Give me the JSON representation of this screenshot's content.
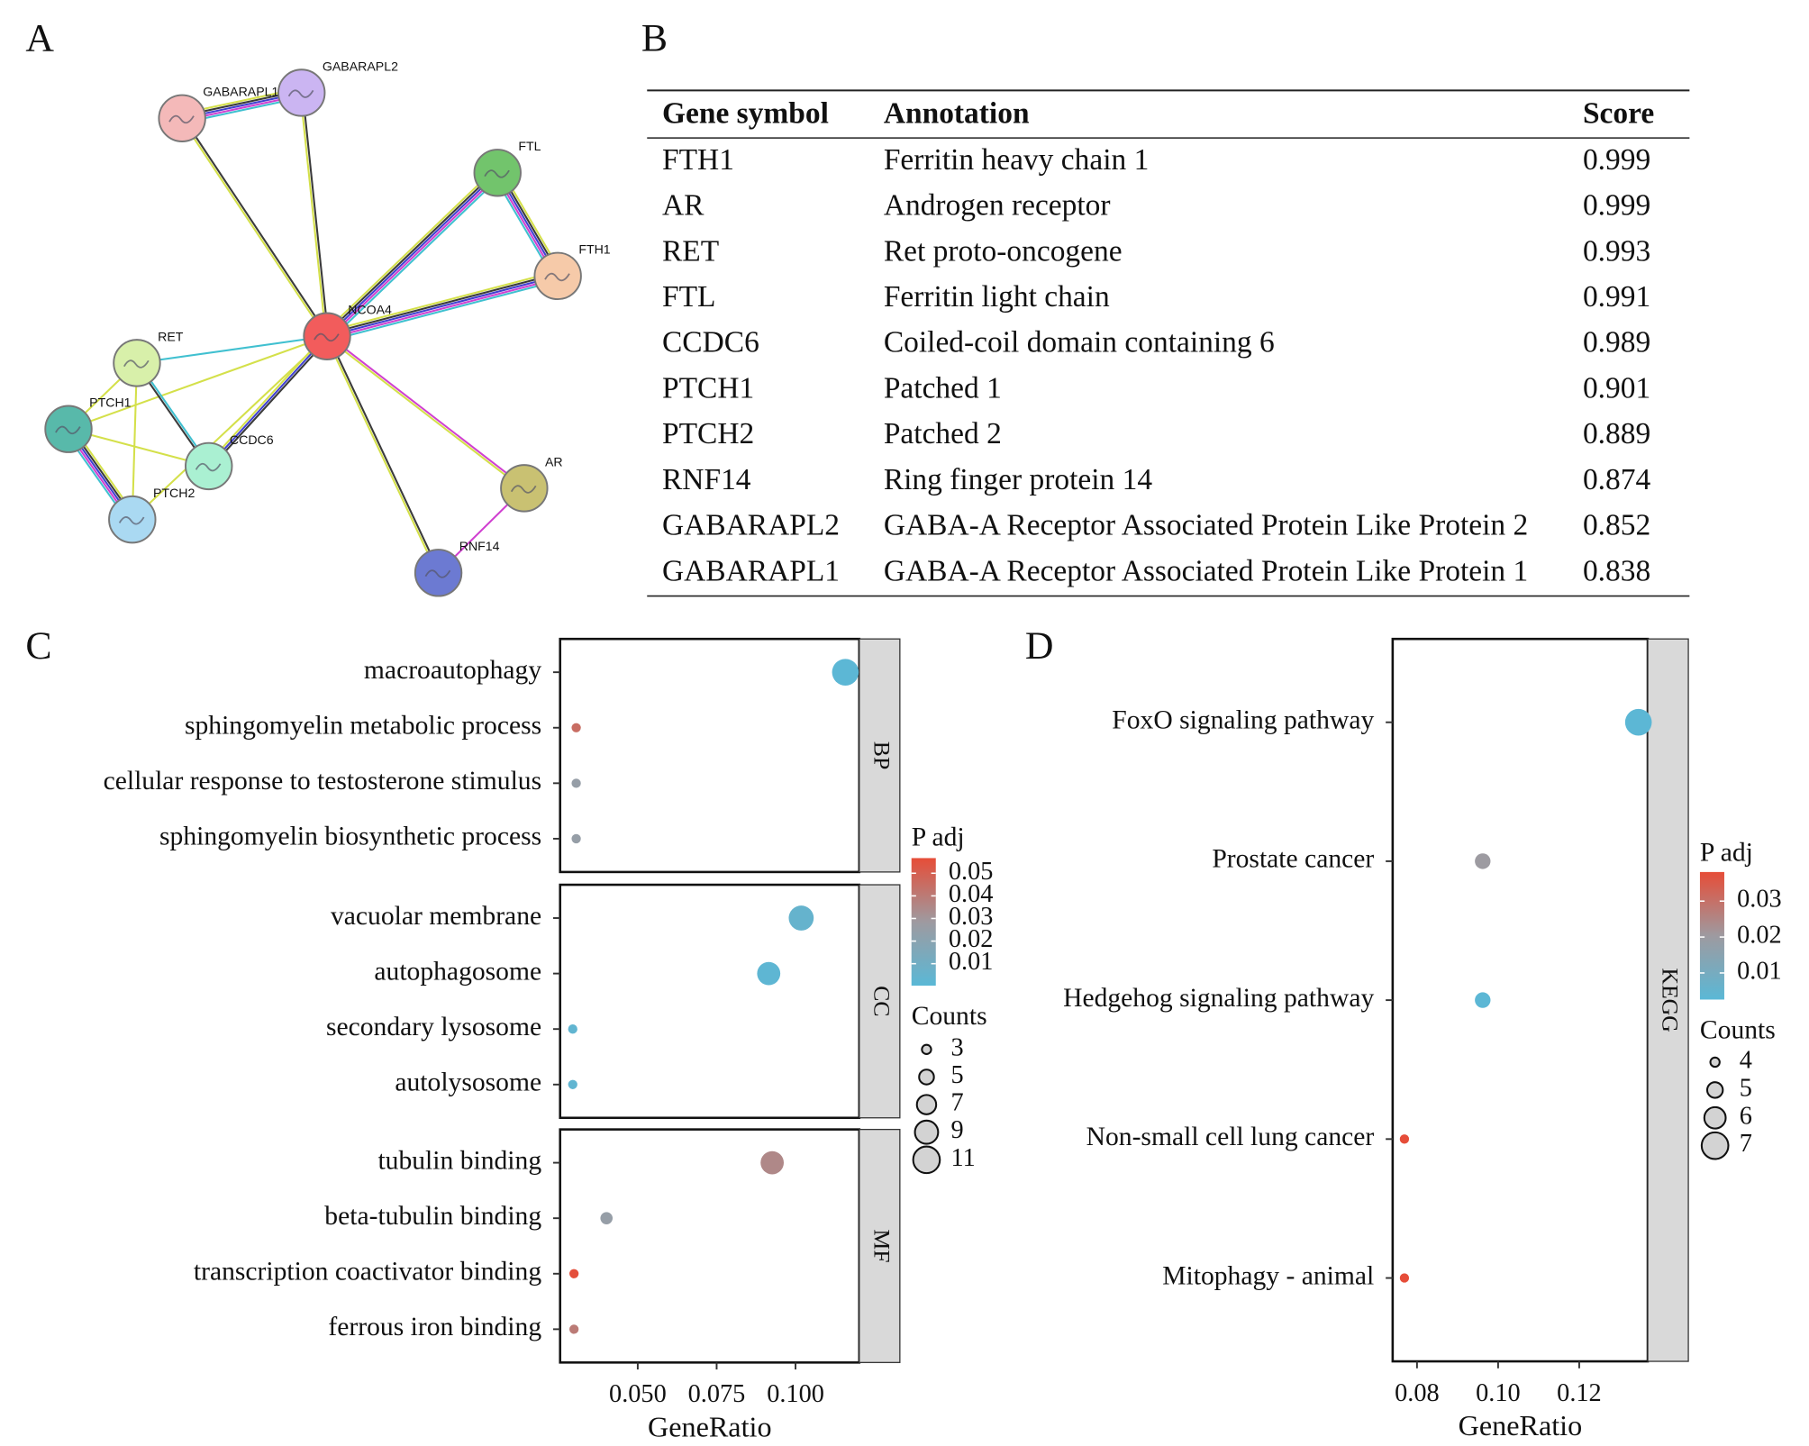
{
  "network": {
    "label": "A",
    "nodes": [
      {
        "name": "GABARAPL1",
        "color": "#f4b9b9"
      },
      {
        "name": "GABARAPL2",
        "color": "#cbb5f2"
      },
      {
        "name": "FTL",
        "color": "#72c46c"
      },
      {
        "name": "FTH1",
        "color": "#f6caa9"
      },
      {
        "name": "NCOA4",
        "color": "#f25c5c"
      },
      {
        "name": "RET",
        "color": "#d8f0aa"
      },
      {
        "name": "PTCH1",
        "color": "#58b9aa"
      },
      {
        "name": "CCDC6",
        "color": "#aaf0d2"
      },
      {
        "name": "PTCH2",
        "color": "#aad9f2"
      },
      {
        "name": "AR",
        "color": "#c9c172"
      },
      {
        "name": "RNF14",
        "color": "#6c7ad2"
      }
    ]
  },
  "table": {
    "label": "B",
    "header": [
      "Gene symbol",
      "Annotation",
      "Score"
    ],
    "rows": [
      [
        "FTH1",
        "Ferritin heavy chain 1",
        "0.999"
      ],
      [
        "AR",
        "Androgen receptor",
        "0.999"
      ],
      [
        "RET",
        "Ret proto-oncogene",
        "0.993"
      ],
      [
        "FTL",
        "Ferritin light chain",
        "0.991"
      ],
      [
        "CCDC6",
        "Coiled-coil domain containing 6",
        "0.989"
      ],
      [
        "PTCH1",
        "Patched 1",
        "0.901"
      ],
      [
        "PTCH2",
        "Patched 2",
        "0.889"
      ],
      [
        "RNF14",
        "Ring finger protein 14",
        "0.874"
      ],
      [
        "GABARAPL2",
        "GABA-A Receptor Associated Protein Like Protein 2",
        "0.852"
      ],
      [
        "GABARAPL1",
        "GABA-A Receptor Associated Protein Like Protein 1",
        "0.838"
      ]
    ]
  },
  "chart_data": [
    {
      "type": "dot",
      "label": "C",
      "xlabel": "GeneRatio",
      "xlim": [
        0.0254,
        0.1202
      ],
      "xticks": [
        {
          "value": 0.05,
          "label": "0.050"
        },
        0.075,
        {
          "value": 0.1,
          "label": "0.100"
        }
      ],
      "facets": [
        {
          "name": "BP",
          "categories": [
            "macroautophagy",
            "sphingomyelin metabolic process",
            "cellular response to testosterone stimulus",
            "sphingomyelin biosynthetic process"
          ],
          "x": [
            0.1158,
            0.0305,
            0.0305,
            0.0305
          ],
          "counts": [
            11,
            3,
            3,
            3
          ],
          "padj": [
            0.001,
            0.045,
            0.025,
            0.025
          ]
        },
        {
          "name": "CC",
          "categories": [
            "vacuolar membrane",
            "autophagosome",
            "secondary lysosome",
            "autolysosome"
          ],
          "x": [
            0.1018,
            0.0915,
            0.0294,
            0.0294
          ],
          "counts": [
            10,
            9,
            3,
            3
          ],
          "padj": [
            0.005,
            0.002,
            0.003,
            0.003
          ]
        },
        {
          "name": "MF",
          "categories": [
            "tubulin binding",
            "beta-tubulin binding",
            "transcription coactivator binding",
            "ferrous iron binding"
          ],
          "x": [
            0.0926,
            0.0401,
            0.0298,
            0.0298
          ],
          "counts": [
            9,
            4,
            3,
            3
          ],
          "padj": [
            0.035,
            0.025,
            0.056,
            0.04
          ]
        }
      ],
      "color_title": "P adj",
      "colorlim": [
        0.0003,
        0.0567
      ],
      "colorticks": [
        0.01,
        0.02,
        0.03,
        0.04,
        0.05
      ],
      "colors": [
        "#5ab8d6",
        "#9e9aa0",
        "#e64d38"
      ],
      "size_title": "Counts",
      "size_legend": [
        3,
        5,
        7,
        9,
        11
      ]
    },
    {
      "type": "dot",
      "label": "D",
      "xlabel": "GeneRatio",
      "xlim": [
        0.074,
        0.1369
      ],
      "xticks": [
        0.08,
        {
          "value": 0.1,
          "label": "0.10"
        },
        0.12
      ],
      "facets": [
        {
          "name": "KEGG",
          "categories": [
            "FoxO signaling pathway",
            "Prostate cancer",
            "Hedgehog signaling pathway",
            "Non-small cell lung cancer",
            "Mitophagy - animal"
          ],
          "x": [
            0.1346,
            0.0962,
            0.0962,
            0.0769,
            0.0769
          ],
          "counts": [
            7,
            5,
            5,
            4,
            4
          ],
          "padj": [
            0.003,
            0.02,
            0.003,
            0.038,
            0.038
          ]
        }
      ],
      "color_title": "P adj",
      "colorlim": [
        0.0026,
        0.0381
      ],
      "colorticks": [
        0.01,
        0.02,
        0.03
      ],
      "colors": [
        "#5ab8d6",
        "#9e9aa0",
        "#e64d38"
      ],
      "size_title": "Counts",
      "size_legend": [
        4,
        5,
        6,
        7
      ]
    }
  ]
}
